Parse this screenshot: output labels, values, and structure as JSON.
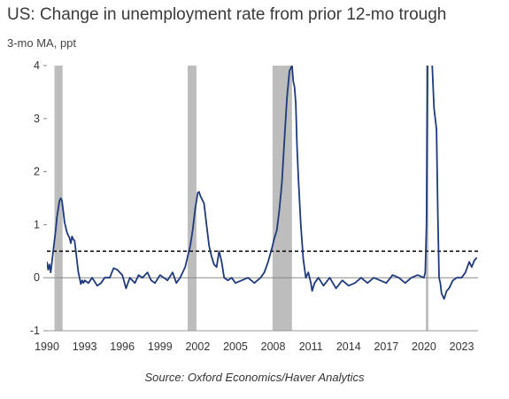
{
  "chart_data": {
    "type": "line",
    "title": "US: Change in unemployment rate from prior 12-mo trough",
    "subtitle": "3-mo MA, ppt",
    "source": "Source: Oxford Economics/Haver Analytics",
    "xlim": [
      1990,
      2024.3
    ],
    "ylim": [
      -1,
      4
    ],
    "x_ticks": [
      "1990",
      "1993",
      "1996",
      "1999",
      "2002",
      "2005",
      "2008",
      "2011",
      "2014",
      "2017",
      "2020",
      "2023"
    ],
    "y_ticks": [
      "-1",
      "0",
      "1",
      "2",
      "3",
      "4"
    ],
    "threshold": 0.5,
    "recessions": [
      [
        1990.6,
        1991.25
      ],
      [
        2001.2,
        2001.9
      ],
      [
        2007.95,
        2009.5
      ],
      [
        2020.15,
        2020.35
      ]
    ],
    "series": [
      {
        "color": "#1f3a7a",
        "x": [
          1990.0,
          1990.1,
          1990.2,
          1990.3,
          1990.4,
          1990.5,
          1990.6,
          1990.7,
          1990.8,
          1990.9,
          1991.0,
          1991.1,
          1991.2,
          1991.3,
          1991.4,
          1991.5,
          1991.6,
          1991.7,
          1991.8,
          1991.9,
          1992.0,
          1992.1,
          1992.2,
          1992.3,
          1992.4,
          1992.5,
          1992.6,
          1992.7,
          1992.8,
          1992.9,
          1993.0,
          1993.3,
          1993.6,
          1994.0,
          1994.3,
          1994.6,
          1995.0,
          1995.3,
          1995.6,
          1996.0,
          1996.3,
          1996.6,
          1997.0,
          1997.3,
          1997.6,
          1998.0,
          1998.3,
          1998.6,
          1999.0,
          1999.3,
          1999.6,
          2000.0,
          2000.3,
          2000.6,
          2001.0,
          2001.2,
          2001.4,
          2001.6,
          2001.8,
          2002.0,
          2002.1,
          2002.2,
          2002.3,
          2002.5,
          2002.7,
          2002.9,
          2003.1,
          2003.3,
          2003.5,
          2003.7,
          2003.9,
          2004.1,
          2004.4,
          2004.7,
          2005.0,
          2005.5,
          2006.0,
          2006.5,
          2007.0,
          2007.3,
          2007.6,
          2007.9,
          2008.1,
          2008.3,
          2008.5,
          2008.7,
          2008.9,
          2009.1,
          2009.3,
          2009.5,
          2009.6,
          2009.7,
          2009.8,
          2009.9,
          2010.0,
          2010.2,
          2010.4,
          2010.6,
          2010.8,
          2011.0,
          2011.1,
          2011.3,
          2011.6,
          2012.0,
          2012.5,
          2013.0,
          2013.5,
          2014.0,
          2014.5,
          2015.0,
          2015.5,
          2016.0,
          2016.5,
          2017.0,
          2017.5,
          2018.0,
          2018.5,
          2019.0,
          2019.5,
          2020.0,
          2020.1,
          2020.2,
          2020.3,
          2020.4,
          2020.6,
          2020.8,
          2021.0,
          2021.1,
          2021.2,
          2021.3,
          2021.4,
          2021.6,
          2021.8,
          2022.0,
          2022.3,
          2022.6,
          2023.0,
          2023.3,
          2023.6,
          2023.8,
          2024.0,
          2024.2
        ],
        "values": [
          0.3,
          0.15,
          0.25,
          0.1,
          0.3,
          0.5,
          0.7,
          0.9,
          1.15,
          1.3,
          1.45,
          1.5,
          1.45,
          1.25,
          1.05,
          0.95,
          0.85,
          0.8,
          0.75,
          0.65,
          0.78,
          0.72,
          0.7,
          0.5,
          0.3,
          0.1,
          0.0,
          -0.12,
          -0.05,
          -0.1,
          -0.05,
          -0.1,
          0.0,
          -0.15,
          -0.1,
          0.0,
          0.0,
          0.18,
          0.15,
          0.05,
          -0.2,
          0.0,
          -0.1,
          0.05,
          0.0,
          0.1,
          -0.05,
          -0.1,
          0.05,
          0.0,
          -0.05,
          0.1,
          -0.1,
          0.0,
          0.2,
          0.4,
          0.6,
          0.9,
          1.3,
          1.6,
          1.62,
          1.55,
          1.5,
          1.4,
          1.0,
          0.6,
          0.4,
          0.25,
          0.2,
          0.5,
          0.3,
          0.0,
          -0.05,
          0.0,
          -0.1,
          -0.05,
          0.0,
          -0.1,
          0.0,
          0.1,
          0.3,
          0.55,
          0.75,
          0.9,
          1.3,
          1.8,
          2.6,
          3.4,
          3.9,
          4.0,
          3.7,
          3.6,
          3.3,
          2.5,
          1.9,
          1.0,
          0.35,
          0.0,
          0.1,
          -0.1,
          -0.25,
          -0.1,
          0.0,
          -0.15,
          0.0,
          -0.2,
          -0.05,
          -0.15,
          -0.1,
          0.0,
          -0.1,
          0.0,
          -0.05,
          -0.1,
          0.05,
          0.0,
          -0.1,
          0.0,
          0.05,
          0.0,
          0.1,
          1.0,
          4.3,
          4.5,
          4.3,
          3.2,
          2.8,
          1.2,
          0.0,
          -0.1,
          -0.3,
          -0.4,
          -0.25,
          -0.2,
          -0.05,
          0.0,
          0.0,
          0.1,
          0.3,
          0.2,
          0.32,
          0.38
        ]
      }
    ]
  }
}
